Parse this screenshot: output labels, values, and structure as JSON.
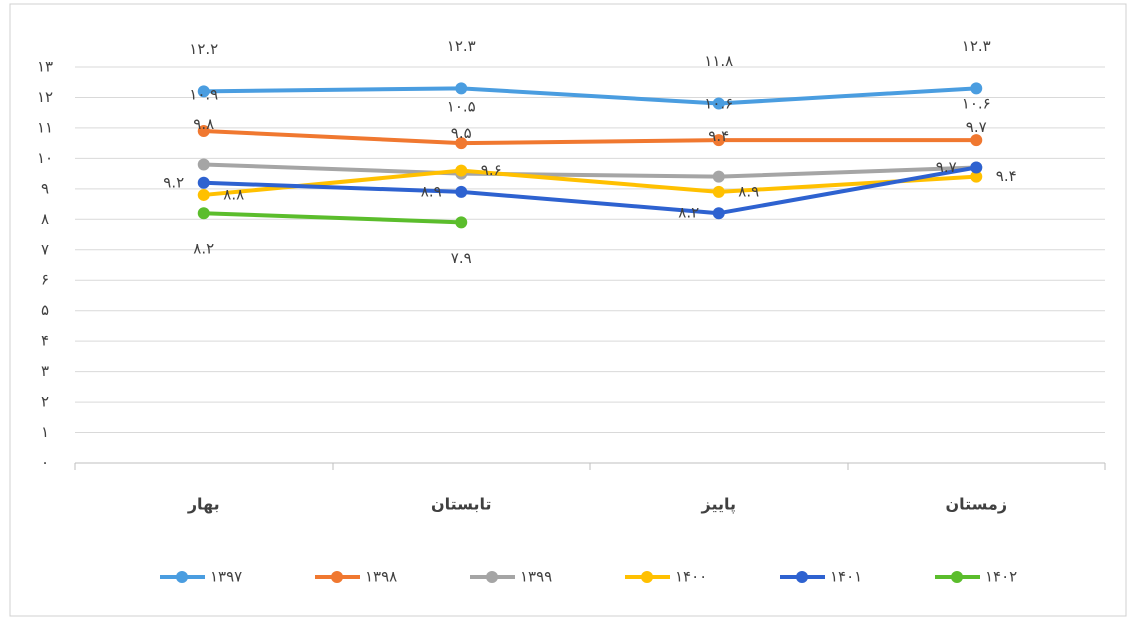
{
  "chart_data": {
    "type": "line",
    "categories": [
      "بهار",
      "تابستان",
      "پاییز",
      "زمستان"
    ],
    "series": [
      {
        "name": "۱۳۹۷",
        "color": "#4a9de0",
        "values": [
          12.2,
          12.3,
          11.8,
          12.3
        ],
        "value_labels": [
          "۱۲.۲",
          "۱۲.۳",
          "۱۱.۸",
          "۱۲.۳"
        ]
      },
      {
        "name": "۱۳۹۸",
        "color": "#f07830",
        "values": [
          10.9,
          10.5,
          10.6,
          10.6
        ],
        "value_labels": [
          "۱۰.۹",
          "۱۰.۵",
          "۱۰.۶",
          "۱۰.۶"
        ]
      },
      {
        "name": "۱۳۹۹",
        "color": "#a5a5a5",
        "values": [
          9.8,
          9.5,
          9.4,
          9.7
        ],
        "value_labels": [
          "۹.۸",
          "۹.۵",
          "۹.۴",
          "۹.۷"
        ]
      },
      {
        "name": "۱۴۰۰",
        "color": "#ffc000",
        "values": [
          8.8,
          9.6,
          8.9,
          9.4
        ],
        "value_labels": [
          "۸.۸",
          "۹.۶",
          "۸.۹",
          "۹.۴"
        ]
      },
      {
        "name": "۱۴۰۱",
        "color": "#2e62d0",
        "values": [
          9.2,
          8.9,
          8.2,
          9.7
        ],
        "value_labels": [
          "۹.۲",
          "۸.۹",
          "۸.۲",
          "۹.۷"
        ]
      },
      {
        "name": "۱۴۰۲",
        "color": "#5bbd2c",
        "values": [
          8.2,
          7.9,
          null,
          null
        ],
        "value_labels": [
          "۸.۲",
          "۷.۹",
          null,
          null
        ]
      }
    ],
    "ylim": [
      0,
      13
    ],
    "yticks": [
      {
        "value": 0,
        "label": "۰"
      },
      {
        "value": 1,
        "label": "۱"
      },
      {
        "value": 2,
        "label": "۲"
      },
      {
        "value": 3,
        "label": "۳"
      },
      {
        "value": 4,
        "label": "۴"
      },
      {
        "value": 5,
        "label": "۵"
      },
      {
        "value": 6,
        "label": "۶"
      },
      {
        "value": 7,
        "label": "۷"
      },
      {
        "value": 8,
        "label": "۸"
      },
      {
        "value": 9,
        "label": "۹"
      },
      {
        "value": 10,
        "label": "۱۰"
      },
      {
        "value": 11,
        "label": "۱۱"
      },
      {
        "value": 12,
        "label": "۱۲"
      },
      {
        "value": 13,
        "label": "۱۳"
      }
    ],
    "grid": true,
    "legend": "bottom"
  }
}
